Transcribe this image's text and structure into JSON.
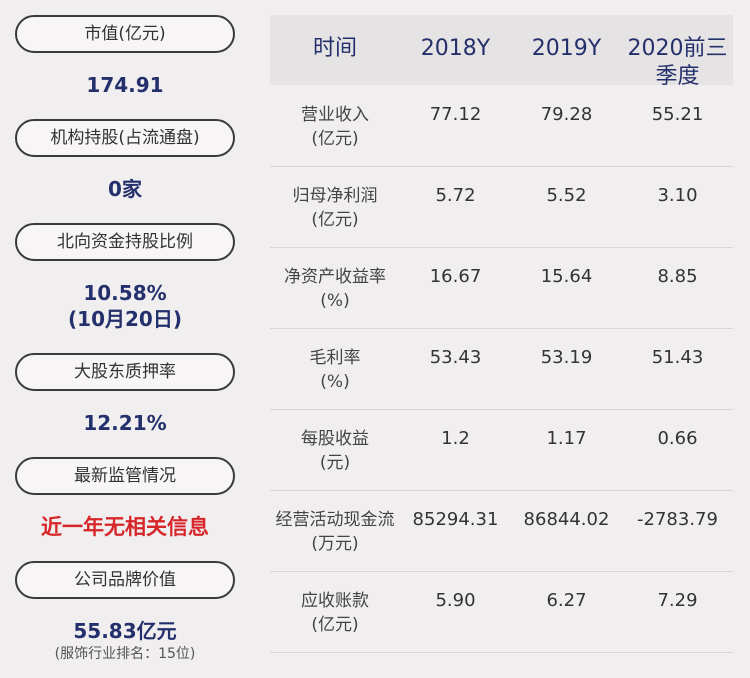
{
  "left_panel": [
    {
      "label": "市值(亿元)",
      "value": "174.91"
    },
    {
      "label": "机构持股(占流通盘)",
      "value": "0家"
    },
    {
      "label": "北向资金持股比例",
      "value": "10.58%",
      "value2": "(10月20日)"
    },
    {
      "label": "大股东质押率",
      "value": "12.21%"
    },
    {
      "label": "最新监管情况",
      "value": "近一年无相关信息"
    },
    {
      "label": "公司品牌价值",
      "value": "55.83亿元",
      "note": "(服饰行业排名：15位)"
    }
  ],
  "table": {
    "headers": [
      "时间",
      "2018Y",
      "2019Y",
      "2020前三",
      "季度"
    ],
    "rows": [
      {
        "label1": "营业收入",
        "label2": "(亿元)",
        "v2018": "77.12",
        "v2019": "79.28",
        "v2020": "55.21"
      },
      {
        "label1": "归母净利润",
        "label2": "(亿元)",
        "v2018": "5.72",
        "v2019": "5.52",
        "v2020": "3.10"
      },
      {
        "label1": "净资产收益率",
        "label2": "(%)",
        "v2018": "16.67",
        "v2019": "15.64",
        "v2020": "8.85"
      },
      {
        "label1": "毛利率",
        "label2": "(%)",
        "v2018": "53.43",
        "v2019": "53.19",
        "v2020": "51.43"
      },
      {
        "label1": "每股收益",
        "label2": "(元)",
        "v2018": "1.2",
        "v2019": "1.17",
        "v2020": "0.66"
      },
      {
        "label1": "经营活动现金流",
        "label2": "(万元)",
        "v2018": "85294.31",
        "v2019": "86844.02",
        "v2020": "-2783.79"
      },
      {
        "label1": "应收账款",
        "label2": "(亿元)",
        "v2018": "5.90",
        "v2019": "6.27",
        "v2020": "7.29"
      }
    ]
  }
}
